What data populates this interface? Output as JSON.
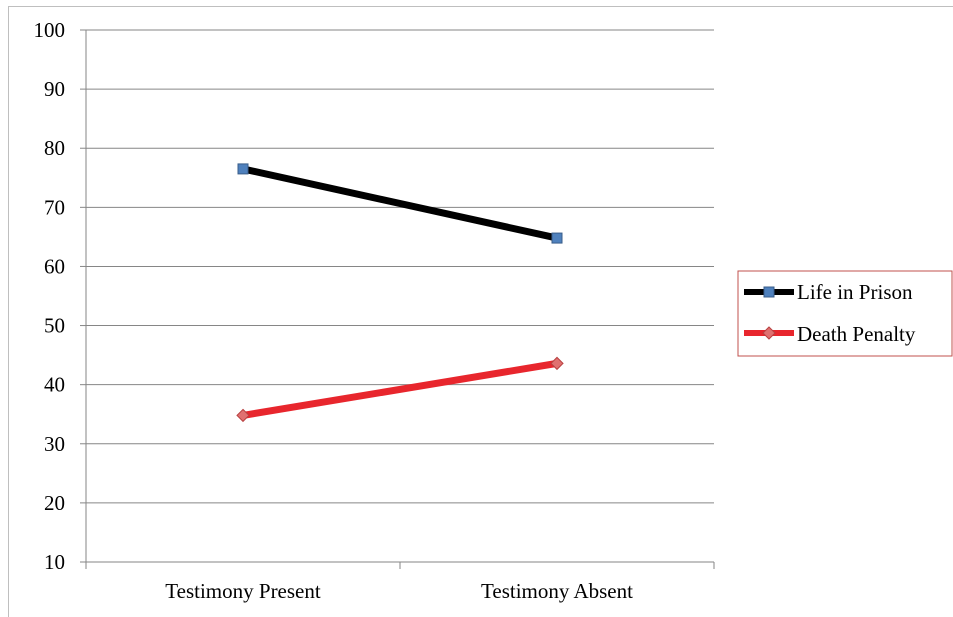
{
  "chart_data": {
    "type": "line",
    "title": "",
    "xlabel": "",
    "ylabel": "",
    "categories": [
      "Testimony Present",
      "Testimony Absent"
    ],
    "ylim": [
      10,
      100
    ],
    "yticks": [
      10,
      20,
      30,
      40,
      50,
      60,
      70,
      80,
      90,
      100
    ],
    "grid": true,
    "legend_position": "right",
    "series": [
      {
        "name": "Life in Prison",
        "values": [
          76.5,
          64.8
        ],
        "color": "#000000",
        "marker": "square",
        "marker_color": "#4f81bd"
      },
      {
        "name": "Death Penalty",
        "values": [
          34.8,
          43.6
        ],
        "color": "#e8262d",
        "marker": "diamond",
        "marker_color": "#e07070"
      }
    ],
    "legend_border_color": "#c0504d"
  }
}
